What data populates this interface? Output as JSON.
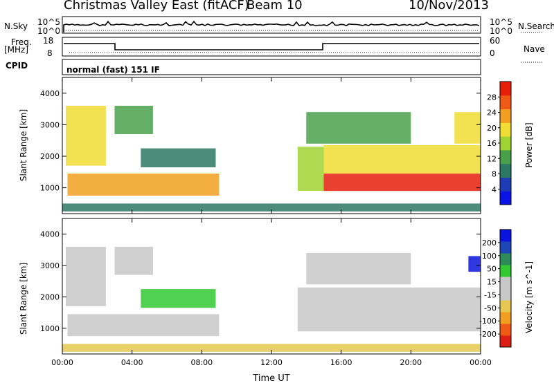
{
  "header": {
    "station": "Christmas Valley East (fitACF)",
    "beam": "Beam 10",
    "date": "10/Nov/2013"
  },
  "panels": {
    "nsky": {
      "label": "N.Sky",
      "ticks": [
        "10^5",
        "10^0"
      ],
      "right_label": "N.Search",
      "right_ticks": [
        "10^5",
        "10^0"
      ]
    },
    "freq": {
      "label_line1": "Freq.",
      "label_line2": "[MHz]",
      "ticks": [
        "18",
        "8"
      ],
      "right_label": "Nave",
      "right_ticks": [
        "60",
        "0"
      ]
    },
    "cpid": {
      "label": "CPID",
      "value": "normal (fast) 151 IF"
    }
  },
  "colors": {
    "power": [
      "#0a14e6",
      "#1e3cb4",
      "#2d7864",
      "#4aa04a",
      "#a0d232",
      "#f0dc32",
      "#f0a01e",
      "#f05a14",
      "#e61e0a"
    ],
    "velocity": [
      "#dc1e14",
      "#f05a14",
      "#f0a01e",
      "#e6c850",
      "#c8c8c8",
      "#c8c8c8",
      "#32c832",
      "#2d8c5a",
      "#1e46b4",
      "#0a14dc"
    ]
  },
  "chart_data": [
    {
      "type": "heatmap",
      "title": "",
      "ylabel": "Slant Range [km]",
      "xlabel": "",
      "x_ticks": [
        "00:00",
        "04:00",
        "08:00",
        "12:00",
        "16:00",
        "20:00",
        "00:00"
      ],
      "xlim_hours": [
        0,
        24
      ],
      "y_ticks": [
        "1000",
        "2000",
        "3000",
        "4000"
      ],
      "ylim": [
        180,
        4500
      ],
      "colorbar": {
        "label": "Power [dB]",
        "ticks": [
          "4",
          "8",
          "12",
          "16",
          "20",
          "24",
          "28"
        ],
        "range": [
          0,
          30
        ]
      },
      "regions": [
        {
          "t0": 0.3,
          "t1": 9.0,
          "r0": 750,
          "r1": 1450,
          "value": 22
        },
        {
          "t0": 0.2,
          "t1": 2.5,
          "r0": 1700,
          "r1": 3600,
          "value": 19
        },
        {
          "t0": 3.0,
          "t1": 5.2,
          "r0": 2700,
          "r1": 3600,
          "value": 12
        },
        {
          "t0": 4.5,
          "t1": 8.8,
          "r0": 1650,
          "r1": 2250,
          "value": 9
        },
        {
          "t0": 0.0,
          "t1": 24.0,
          "r0": 250,
          "r1": 500,
          "value": 8
        },
        {
          "t0": 13.5,
          "t1": 15.0,
          "r0": 900,
          "r1": 2300,
          "value": 16
        },
        {
          "t0": 15.0,
          "t1": 24.0,
          "r0": 900,
          "r1": 1450,
          "value": 28
        },
        {
          "t0": 15.0,
          "t1": 24.0,
          "r0": 1450,
          "r1": 2350,
          "value": 17
        },
        {
          "t0": 14.0,
          "t1": 20.0,
          "r0": 2400,
          "r1": 3400,
          "value": 11
        },
        {
          "t0": 22.5,
          "t1": 24.0,
          "r0": 2400,
          "r1": 3400,
          "value": 19
        }
      ]
    },
    {
      "type": "heatmap",
      "title": "",
      "ylabel": "Slant Range [km]",
      "xlabel": "Time UT",
      "x_ticks": [
        "00:00",
        "04:00",
        "08:00",
        "12:00",
        "16:00",
        "20:00",
        "00:00"
      ],
      "xlim_hours": [
        0,
        24
      ],
      "y_ticks": [
        "1000",
        "2000",
        "3000",
        "4000"
      ],
      "ylim": [
        180,
        4500
      ],
      "colorbar": {
        "label": "Velocity [m s^-1]",
        "ticks": [
          "-200",
          "-100",
          "-50",
          "-15",
          "15",
          "50",
          "100",
          "200"
        ],
        "range": [
          -250,
          250
        ]
      },
      "regions": [
        {
          "t0": 0.3,
          "t1": 9.0,
          "r0": 750,
          "r1": 1450,
          "value": 40
        },
        {
          "t0": 0.2,
          "t1": 2.5,
          "r0": 1700,
          "r1": 3600,
          "value": 0
        },
        {
          "t0": 3.0,
          "t1": 5.2,
          "r0": 2700,
          "r1": 3600,
          "value": 0
        },
        {
          "t0": 4.5,
          "t1": 8.8,
          "r0": 1650,
          "r1": 2250,
          "value": 70
        },
        {
          "t0": 0.0,
          "t1": 24.0,
          "r0": 250,
          "r1": 500,
          "value": -60
        },
        {
          "t0": 13.5,
          "t1": 15.0,
          "r0": 900,
          "r1": 2300,
          "value": 35
        },
        {
          "t0": 15.0,
          "t1": 24.0,
          "r0": 900,
          "r1": 2300,
          "value": 0
        },
        {
          "t0": 14.0,
          "t1": 20.0,
          "r0": 2400,
          "r1": 3400,
          "value": 5
        },
        {
          "t0": 23.3,
          "t1": 24.0,
          "r0": 2800,
          "r1": 3300,
          "value": 230
        }
      ]
    }
  ]
}
